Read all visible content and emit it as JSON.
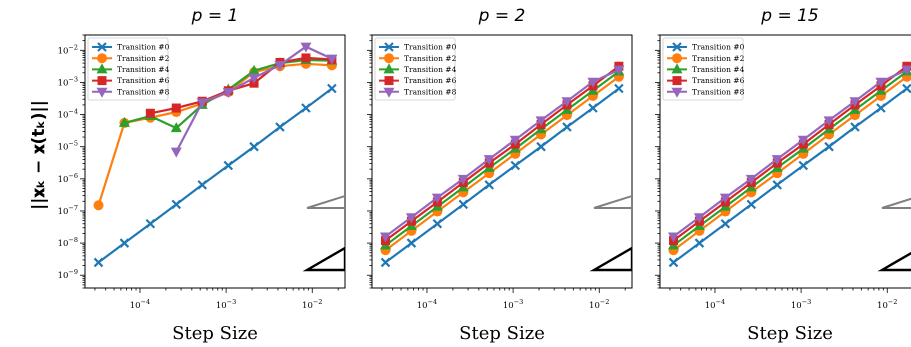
{
  "figure": {
    "ylabel": "||x_k − x(t_k)||",
    "ylabel_display": "||𝐱ₖ − 𝐱(tₖ)||"
  },
  "chart_data": [
    {
      "type": "line",
      "title": "p = 1",
      "xlabel": "Step Size",
      "ylabel": "||x_k − x(t_k)||",
      "xscale": "log",
      "yscale": "log",
      "xlim": [
        2.3e-05,
        0.024
      ],
      "ylim": [
        4e-10,
        0.03
      ],
      "xticks": [
        "10^-4",
        "10^-3",
        "10^-2"
      ],
      "yticks": [
        "10^-9",
        "10^-8",
        "10^-7",
        "10^-6",
        "10^-5",
        "10^-4",
        "10^-3",
        "10^-2"
      ],
      "legend_loc": "top-left",
      "grid": false,
      "series": [
        {
          "name": "Transition #0",
          "color": "#1f77b4",
          "marker": "x",
          "x": [
            3.3e-05,
            6.6e-05,
            0.000132,
            0.000264,
            0.000528,
            0.00106,
            0.00211,
            0.00422,
            0.00845,
            0.0169
          ],
          "y": [
            2.5e-09,
            1e-08,
            4e-08,
            1.6e-07,
            6.5e-07,
            2.6e-06,
            1e-05,
            4.1e-05,
            0.00016,
            0.00065
          ]
        },
        {
          "name": "Transition #2",
          "color": "#ff7f0e",
          "marker": "o",
          "x": [
            3.3e-05,
            6.6e-05,
            0.000132,
            0.000264,
            0.000528,
            0.00106,
            0.00211,
            0.00422,
            0.00845,
            0.0169
          ],
          "y": [
            1.5e-07,
            5.5e-05,
            8e-05,
            0.00012,
            0.00022,
            0.0005,
            0.0021,
            0.0032,
            0.0038,
            0.0034
          ]
        },
        {
          "name": "Transition #4",
          "color": "#2ca02c",
          "marker": "^",
          "x": [
            6.6e-05,
            0.000132,
            0.000264,
            0.000528,
            0.00106,
            0.00211,
            0.00422,
            0.00845,
            0.0169
          ],
          "y": [
            5.5e-05,
            9e-05,
            3.8e-05,
            0.0002,
            0.0006,
            0.0023,
            0.004,
            0.005,
            0.0048
          ]
        },
        {
          "name": "Transition #6",
          "color": "#d62728",
          "marker": "s",
          "x": [
            0.000132,
            0.000264,
            0.000528,
            0.00106,
            0.00211,
            0.00422,
            0.00845,
            0.0169
          ],
          "y": [
            0.00011,
            0.00016,
            0.00026,
            0.00055,
            0.00095,
            0.0042,
            0.0058,
            0.0052
          ]
        },
        {
          "name": "Transition #8",
          "color": "#9467bd",
          "marker": "v",
          "x": [
            0.000264,
            0.000528,
            0.00106,
            0.00211,
            0.00422,
            0.00845,
            0.0169
          ],
          "y": [
            7e-06,
            0.00024,
            0.0005,
            0.0014,
            0.0035,
            0.013,
            0.0055
          ]
        }
      ]
    },
    {
      "type": "line",
      "title": "p = 2",
      "xlabel": "Step Size",
      "xscale": "log",
      "yscale": "log",
      "xlim": [
        2.3e-05,
        0.024
      ],
      "ylim": [
        4e-10,
        0.03
      ],
      "xticks": [
        "10^-4",
        "10^-3",
        "10^-2"
      ],
      "legend_loc": "top-left",
      "grid": false,
      "series": [
        {
          "name": "Transition #0",
          "color": "#1f77b4",
          "marker": "x",
          "x": [
            3.3e-05,
            6.6e-05,
            0.000132,
            0.000264,
            0.000528,
            0.00106,
            0.00211,
            0.00422,
            0.00845,
            0.0169
          ],
          "y": [
            2.5e-09,
            1e-08,
            4e-08,
            1.6e-07,
            6.5e-07,
            2.6e-06,
            1e-05,
            4.1e-05,
            0.00016,
            0.00065
          ]
        },
        {
          "name": "Transition #2",
          "color": "#ff7f0e",
          "marker": "o",
          "x": [
            3.3e-05,
            6.6e-05,
            0.000132,
            0.000264,
            0.000528,
            0.00106,
            0.00211,
            0.00422,
            0.00845,
            0.0169
          ],
          "y": [
            6e-09,
            2.4e-08,
            9.6e-08,
            3.8e-07,
            1.5e-06,
            6e-06,
            2.4e-05,
            9.6e-05,
            0.00038,
            0.0015
          ]
        },
        {
          "name": "Transition #4",
          "color": "#2ca02c",
          "marker": "^",
          "x": [
            3.3e-05,
            6.6e-05,
            0.000132,
            0.000264,
            0.000528,
            0.00106,
            0.00211,
            0.00422,
            0.00845,
            0.0169
          ],
          "y": [
            8.5e-09,
            3.4e-08,
            1.36e-07,
            5.4e-07,
            2.2e-06,
            8.7e-06,
            3.5e-05,
            0.00014,
            0.00055,
            0.0022
          ]
        },
        {
          "name": "Transition #6",
          "color": "#d62728",
          "marker": "s",
          "x": [
            3.3e-05,
            6.6e-05,
            0.000132,
            0.000264,
            0.000528,
            0.00106,
            0.00211,
            0.00422,
            0.00845,
            0.0169
          ],
          "y": [
            1.2e-08,
            4.8e-08,
            1.9e-07,
            7.7e-07,
            3.1e-06,
            1.2e-05,
            4.9e-05,
            0.0002,
            0.00078,
            0.0032
          ]
        },
        {
          "name": "Transition #8",
          "color": "#9467bd",
          "marker": "v",
          "x": [
            3.3e-05,
            6.6e-05,
            0.000132,
            0.000264,
            0.000528,
            0.00106,
            0.00211,
            0.00422,
            0.00845,
            0.0169
          ],
          "y": [
            1.6e-08,
            6.4e-08,
            2.6e-07,
            1e-06,
            4.1e-06,
            1.65e-05,
            6.6e-05,
            0.00026,
            0.00105,
            0.0025
          ]
        }
      ]
    },
    {
      "type": "line",
      "title": "p = 15",
      "xlabel": "Step Size",
      "xscale": "log",
      "yscale": "log",
      "xlim": [
        2.3e-05,
        0.024
      ],
      "ylim": [
        4e-10,
        0.03
      ],
      "xticks": [
        "10^-4",
        "10^-3",
        "10^-2"
      ],
      "legend_loc": "top-left",
      "grid": false,
      "series": [
        {
          "name": "Transition #0",
          "color": "#1f77b4",
          "marker": "x",
          "x": [
            3.3e-05,
            6.6e-05,
            0.000132,
            0.000264,
            0.000528,
            0.00106,
            0.00211,
            0.00422,
            0.00845,
            0.0169
          ],
          "y": [
            2.5e-09,
            1e-08,
            4e-08,
            1.6e-07,
            6.5e-07,
            2.6e-06,
            1e-05,
            4.1e-05,
            0.00016,
            0.00065
          ]
        },
        {
          "name": "Transition #2",
          "color": "#ff7f0e",
          "marker": "o",
          "x": [
            3.3e-05,
            6.6e-05,
            0.000132,
            0.000264,
            0.000528,
            0.00106,
            0.00211,
            0.00422,
            0.00845,
            0.0169
          ],
          "y": [
            6e-09,
            2.4e-08,
            9.6e-08,
            3.8e-07,
            1.5e-06,
            6e-06,
            2.4e-05,
            9.6e-05,
            0.00038,
            0.0015
          ]
        },
        {
          "name": "Transition #4",
          "color": "#2ca02c",
          "marker": "^",
          "x": [
            3.3e-05,
            6.6e-05,
            0.000132,
            0.000264,
            0.000528,
            0.00106,
            0.00211,
            0.00422,
            0.00845,
            0.0169
          ],
          "y": [
            8.5e-09,
            3.4e-08,
            1.36e-07,
            5.4e-07,
            2.2e-06,
            8.7e-06,
            3.5e-05,
            0.00014,
            0.00055,
            0.0022
          ]
        },
        {
          "name": "Transition #6",
          "color": "#d62728",
          "marker": "s",
          "x": [
            3.3e-05,
            6.6e-05,
            0.000132,
            0.000264,
            0.000528,
            0.00106,
            0.00211,
            0.00422,
            0.00845,
            0.0169
          ],
          "y": [
            1.2e-08,
            4.8e-08,
            1.9e-07,
            7.7e-07,
            3.1e-06,
            1.2e-05,
            4.9e-05,
            0.0002,
            0.00078,
            0.0032
          ]
        },
        {
          "name": "Transition #8",
          "color": "#9467bd",
          "marker": "v",
          "x": [
            3.3e-05,
            6.6e-05,
            0.000132,
            0.000264,
            0.000528,
            0.00106,
            0.00211,
            0.00422,
            0.00845,
            0.0169
          ],
          "y": [
            1.6e-08,
            6.4e-08,
            2.6e-07,
            1e-06,
            4.1e-06,
            1.65e-05,
            6.6e-05,
            0.00026,
            0.00105,
            0.0025
          ]
        }
      ]
    }
  ]
}
